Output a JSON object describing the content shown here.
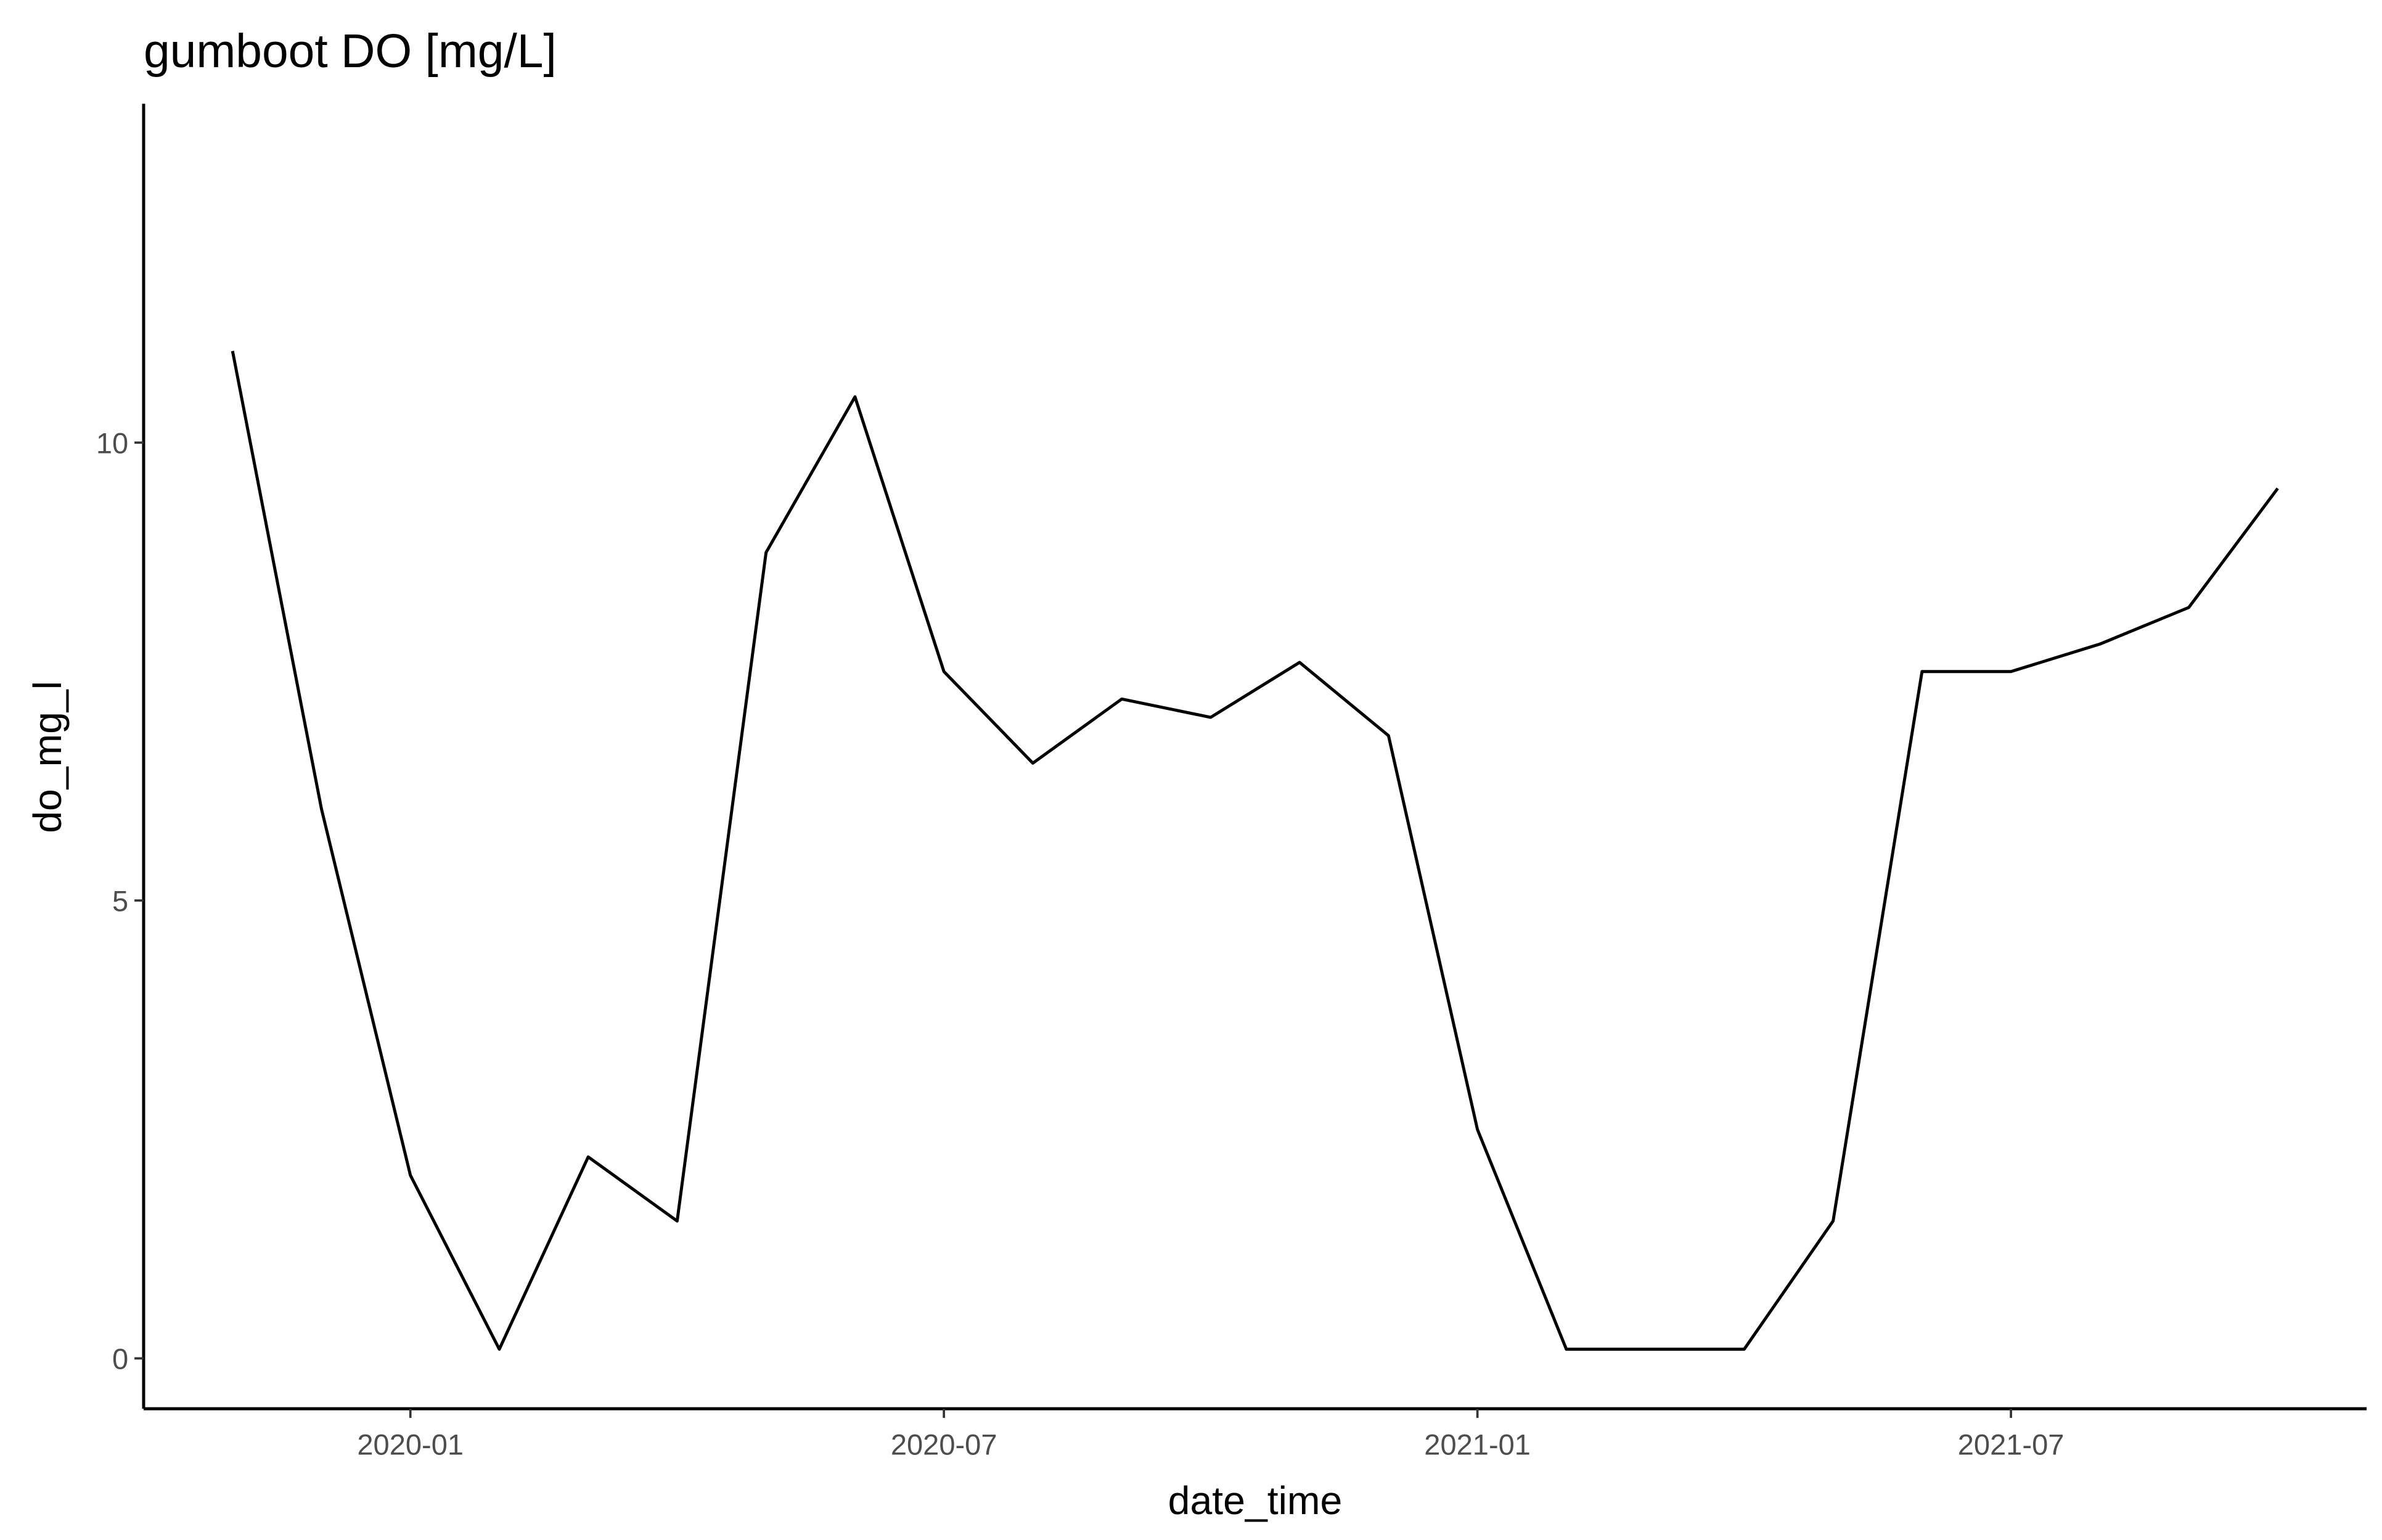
{
  "chart_data": {
    "type": "line",
    "title": "gumboot DO [mg/L]",
    "x_label": "date_time",
    "y_label": "do_mg_l",
    "x": [
      "2019-11",
      "2019-12",
      "2020-01",
      "2020-02",
      "2020-03",
      "2020-04",
      "2020-05",
      "2020-06",
      "2020-07",
      "2020-08",
      "2020-09",
      "2020-10",
      "2020-11",
      "2020-12",
      "2021-01",
      "2021-02",
      "2021-03",
      "2021-04",
      "2021-05",
      "2021-06",
      "2021-07",
      "2021-08",
      "2021-09",
      "2021-10"
    ],
    "series": [
      {
        "name": "do_mg_l",
        "color": "#000000",
        "values": [
          11,
          6,
          2,
          0.1,
          2.2,
          1.5,
          8.8,
          10.5,
          7.5,
          6.5,
          7.2,
          7,
          7.6,
          6.8,
          2.5,
          0.1,
          0.1,
          0.1,
          1.5,
          7.5,
          7.5,
          7.8,
          8.2,
          9.5
        ]
      }
    ],
    "xlim": [
      "2019-10",
      "2021-11"
    ],
    "xticks": [
      "2020-01",
      "2020-07",
      "2021-01",
      "2021-07"
    ],
    "ylim": [
      -0.55,
      13.7
    ],
    "yticks": [
      0,
      5,
      10
    ],
    "grid": false
  }
}
